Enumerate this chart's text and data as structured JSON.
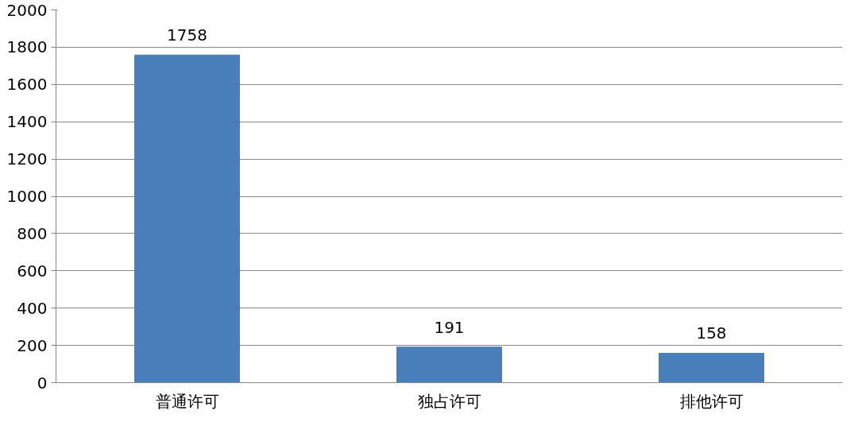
{
  "chart_data": {
    "type": "bar",
    "categories": [
      "普通许可",
      "独占许可",
      "排他许可"
    ],
    "values": [
      1758,
      191,
      158
    ],
    "color": "#4a7ebb",
    "ylim": [
      0,
      2000
    ],
    "yticks": [
      0,
      200,
      400,
      600,
      800,
      1000,
      1200,
      1400,
      1600,
      1800,
      2000
    ],
    "grid": "y",
    "data_labels": true
  }
}
